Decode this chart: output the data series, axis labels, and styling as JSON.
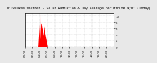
{
  "title": "Milwaukee Weather - Solar Radiation & Day Average per Minute W/m² (Today)",
  "bg_color": "#e8e8e8",
  "plot_bg_color": "#ffffff",
  "grid_color": "#bbbbbb",
  "fill_color": "#ff0000",
  "line_color": "#dd0000",
  "ylabel_color": "#000000",
  "xlabel_color": "#000000",
  "ylim": [
    0,
    1100
  ],
  "yticks": [
    0,
    200,
    400,
    600,
    800,
    1000
  ],
  "ytick_labels": [
    "0",
    "2",
    "4",
    "6",
    "8",
    "10"
  ],
  "title_fontsize": 3.5,
  "tick_fontsize": 2.8,
  "solar_data": [
    0,
    0,
    0,
    0,
    0,
    0,
    0,
    0,
    0,
    0,
    0,
    0,
    0,
    0,
    0,
    0,
    0,
    0,
    0,
    0,
    0,
    0,
    0,
    0,
    0,
    0,
    0,
    0,
    0,
    0,
    0,
    0,
    0,
    0,
    0,
    0,
    0,
    0,
    0,
    0,
    0,
    0,
    0,
    0,
    0,
    0,
    0,
    0,
    0,
    0,
    0,
    0,
    0,
    0,
    0,
    0,
    0,
    0,
    0,
    0,
    0,
    0,
    0,
    0,
    0,
    0,
    0,
    0,
    0,
    0,
    0,
    0,
    0,
    0,
    0,
    0,
    0,
    0,
    0,
    0,
    0,
    0,
    0,
    0,
    0,
    0,
    0,
    0,
    0,
    0,
    0,
    0,
    0,
    0,
    0,
    0,
    0,
    0,
    0,
    0,
    0,
    0,
    0,
    0,
    0,
    0,
    0,
    0,
    0,
    0,
    0,
    0,
    0,
    0,
    0,
    0,
    0,
    0,
    0,
    0,
    0,
    0,
    0,
    0,
    0,
    0,
    0,
    0,
    0,
    0,
    0,
    0,
    0,
    0,
    0,
    0,
    0,
    0,
    0,
    0,
    0,
    0,
    0,
    0,
    0,
    0,
    0,
    0,
    0,
    0,
    0,
    0,
    0,
    0,
    0,
    0,
    0,
    0,
    0,
    0,
    0,
    0,
    0,
    0,
    0,
    0,
    0,
    0,
    0,
    0,
    0,
    0,
    0,
    0,
    0,
    0,
    0,
    0,
    0,
    0,
    0,
    0,
    0,
    0,
    0,
    0,
    0,
    0,
    0,
    0,
    0,
    0,
    0,
    0,
    0,
    0,
    0,
    0,
    0,
    0,
    0,
    0,
    0,
    0,
    0,
    0,
    0,
    0,
    0,
    0,
    5,
    15,
    30,
    50,
    80,
    120,
    160,
    200,
    240,
    270,
    310,
    340,
    370,
    400,
    430,
    460,
    490,
    520,
    550,
    580,
    610,
    650,
    700,
    750,
    800,
    850,
    900,
    950,
    1000,
    1050,
    1080,
    1100,
    1090,
    1070,
    1050,
    800,
    600,
    400,
    300,
    280,
    300,
    400,
    500,
    550,
    600,
    650,
    700,
    720,
    730,
    740,
    750,
    760,
    770,
    760,
    750,
    730,
    710,
    690,
    670,
    650,
    640,
    630,
    620,
    610,
    600,
    590,
    580,
    570,
    560,
    550,
    540,
    530,
    520,
    510,
    500,
    490,
    480,
    460,
    440,
    420,
    400,
    380,
    370,
    380,
    400,
    420,
    440,
    460,
    480,
    500,
    520,
    540,
    560,
    580,
    600,
    610,
    620,
    630,
    640,
    650,
    660,
    640,
    600,
    560,
    520,
    500,
    490,
    480,
    470,
    460,
    450,
    440,
    430,
    420,
    410,
    400,
    390,
    380,
    370,
    360,
    350,
    340,
    330,
    320,
    310,
    300,
    290,
    280,
    270,
    260,
    250,
    240,
    230,
    220,
    210,
    200,
    190,
    180,
    170,
    160,
    150,
    140,
    130,
    120,
    110,
    100,
    90,
    80,
    70,
    60,
    50,
    40,
    30,
    20,
    15,
    10,
    5,
    3,
    2,
    1,
    0,
    0,
    0,
    0,
    0,
    0,
    0,
    0,
    0,
    0,
    0,
    0,
    0,
    0,
    0,
    0,
    0,
    0,
    0,
    0,
    0,
    0,
    0,
    0,
    0,
    0,
    0,
    0,
    0,
    0,
    0,
    0,
    0,
    0,
    0,
    0,
    0,
    0,
    0,
    0,
    0,
    0,
    0,
    0,
    0,
    0,
    0,
    0,
    0,
    0,
    0,
    0,
    0,
    0,
    0,
    0,
    0,
    0,
    0,
    0,
    0,
    0,
    0,
    0,
    0,
    0,
    0,
    0,
    0,
    0,
    0,
    0,
    0,
    0,
    0,
    0,
    0,
    0,
    0,
    0,
    0,
    0,
    0,
    0,
    0,
    0,
    0,
    0,
    0,
    0,
    0,
    0,
    0,
    0,
    0,
    0,
    0,
    0,
    0,
    0,
    0,
    0,
    0,
    0,
    0,
    0,
    0,
    0,
    0,
    0,
    0,
    0,
    0,
    0,
    0,
    0,
    0,
    0,
    0,
    0,
    0,
    0,
    0,
    0,
    0,
    0,
    0,
    0,
    0,
    0,
    0,
    0,
    0,
    0,
    0,
    0,
    0,
    0,
    0,
    0,
    0,
    0,
    0,
    0,
    0,
    0,
    0,
    0,
    0,
    0,
    0,
    0,
    0,
    0,
    0,
    0,
    0,
    0,
    0,
    0,
    0,
    0,
    0,
    0,
    0,
    0,
    0,
    0,
    0,
    0,
    0,
    0,
    0,
    0,
    0,
    0,
    0,
    0,
    0,
    0,
    0,
    0,
    0,
    0,
    0,
    0,
    0,
    0,
    0,
    0,
    0,
    0,
    0,
    0,
    0,
    0,
    0,
    0,
    0,
    0,
    0,
    0,
    0,
    0,
    0,
    0,
    0,
    0,
    0,
    0,
    0,
    0,
    0,
    0,
    0,
    0,
    0,
    0,
    0,
    0,
    0,
    0,
    0,
    0,
    0,
    0,
    0,
    0,
    0,
    0,
    0,
    0,
    0,
    0,
    0,
    0,
    0,
    0,
    0,
    0,
    0,
    0,
    0,
    0,
    0,
    0,
    0,
    0,
    0,
    0,
    0,
    0,
    0,
    0,
    0,
    0,
    0,
    0,
    0,
    0,
    0,
    0,
    0,
    0,
    0,
    0,
    0,
    0,
    0,
    0,
    0,
    0,
    0,
    0,
    0,
    0,
    0,
    0,
    0,
    0,
    0,
    0,
    0,
    0,
    0,
    0,
    0,
    0,
    0,
    0,
    0,
    0,
    0,
    0,
    0,
    0,
    0,
    0,
    0,
    0,
    0,
    0,
    0,
    0,
    0,
    0,
    0,
    0,
    0,
    0,
    0,
    0,
    0,
    0,
    0,
    0,
    0,
    0,
    0,
    0,
    0,
    0,
    0,
    0,
    0,
    0,
    0,
    0,
    0,
    0,
    0,
    0,
    0,
    0,
    0,
    0,
    0,
    0,
    0,
    0,
    0,
    0,
    0,
    0,
    0,
    0,
    0,
    0,
    0,
    0,
    0,
    0,
    0,
    0,
    0,
    0,
    0,
    0,
    0,
    0,
    0,
    0,
    0,
    0,
    0,
    0,
    0,
    0,
    0,
    0,
    0,
    0,
    0,
    0,
    0,
    0,
    0,
    0,
    0,
    0,
    0,
    0,
    0,
    0,
    0,
    0,
    0,
    0,
    0,
    0,
    0,
    0,
    0,
    0,
    0,
    0,
    0,
    0,
    0,
    0,
    0,
    0,
    0,
    0,
    0,
    0,
    0,
    0,
    0,
    0,
    0,
    0,
    0,
    0,
    0,
    0,
    0,
    0,
    0,
    0,
    0,
    0,
    0,
    0,
    0,
    0,
    0,
    0,
    0,
    0,
    0,
    0,
    0,
    0,
    0,
    0,
    0,
    0,
    0,
    0,
    0,
    0,
    0,
    0,
    0,
    0,
    0,
    0,
    0,
    0,
    0,
    0,
    0,
    0,
    0,
    0,
    0,
    0,
    0,
    0,
    0,
    0,
    0,
    0,
    0,
    0,
    0,
    0,
    0,
    0,
    0,
    0,
    0,
    0,
    0,
    0,
    0,
    0,
    0,
    0,
    0,
    0,
    0,
    0,
    0,
    0,
    0,
    0,
    0,
    0,
    0,
    0,
    0,
    0,
    0,
    0,
    0,
    0,
    0,
    0,
    0,
    0,
    0,
    0,
    0,
    0,
    0,
    0,
    0,
    0,
    0,
    0,
    0,
    0,
    0,
    0,
    0,
    0,
    0,
    0,
    0,
    0,
    0,
    0,
    0,
    0,
    0,
    0,
    0,
    0,
    0,
    0,
    0,
    0,
    0,
    0,
    0,
    0,
    0,
    0,
    0,
    0,
    0,
    0,
    0,
    0,
    0,
    0,
    0,
    0,
    0,
    0,
    0,
    0,
    0,
    0,
    0,
    0,
    0,
    0,
    0,
    0,
    0,
    0,
    0,
    0,
    0,
    0,
    0,
    0,
    0,
    0,
    0,
    0,
    0,
    0,
    0,
    0,
    0,
    0,
    0,
    0,
    0,
    0,
    0,
    0,
    0,
    0,
    0,
    0,
    0,
    0,
    0,
    0,
    0,
    0,
    0,
    0,
    0,
    0,
    0,
    0,
    0,
    0,
    0,
    0,
    0,
    0,
    0,
    0,
    0,
    0,
    0,
    0,
    0,
    0,
    0,
    0,
    0,
    0,
    0,
    0,
    0,
    0,
    0,
    0,
    0,
    0,
    0,
    0,
    0,
    0,
    0,
    0,
    0,
    0,
    0,
    0,
    0,
    0,
    0,
    0,
    0,
    0,
    0,
    0,
    0,
    0,
    0,
    0,
    0,
    0,
    0,
    0,
    0,
    0,
    0,
    0,
    0,
    0,
    0,
    0,
    0,
    0,
    0,
    0,
    0,
    0,
    0,
    0,
    0,
    0,
    0,
    0,
    0,
    0,
    0,
    0,
    0,
    0,
    0,
    0,
    0,
    0,
    0,
    0,
    0,
    0,
    0,
    0,
    0,
    0,
    0,
    0,
    0,
    0,
    0,
    0,
    0,
    0,
    0,
    0,
    0,
    0,
    0,
    0,
    0,
    0,
    0,
    0,
    0,
    0,
    0,
    0,
    0,
    0,
    0,
    0,
    0,
    0,
    0,
    0,
    0,
    0,
    0,
    0,
    0,
    0,
    0,
    0,
    0,
    0,
    0,
    0,
    0,
    0,
    0,
    0,
    0,
    0,
    0,
    0,
    0,
    0,
    0,
    0,
    0,
    0,
    0,
    0,
    0,
    0,
    0,
    0,
    0,
    0,
    0,
    0,
    0,
    0,
    0,
    0,
    0,
    0,
    0,
    0,
    0,
    0,
    0,
    0,
    0,
    0,
    0,
    0,
    0,
    0,
    0,
    0,
    0,
    0,
    0,
    0,
    0,
    0,
    0,
    0,
    0,
    0,
    0,
    0,
    0,
    0,
    0,
    0,
    0,
    0,
    0,
    0,
    0,
    0,
    0,
    0,
    0,
    0,
    0,
    0,
    0,
    0,
    0,
    0,
    0,
    0,
    0,
    0,
    0,
    0,
    0,
    0,
    0,
    0,
    0,
    0,
    0,
    0,
    0,
    0,
    0,
    0,
    0,
    0,
    0,
    0,
    0,
    0,
    0,
    0,
    0,
    0,
    0,
    0,
    0,
    0,
    0,
    0,
    0,
    0,
    0,
    0,
    0,
    0,
    0,
    0,
    0,
    0,
    0,
    0,
    0,
    0,
    0,
    0,
    0,
    0,
    0,
    0,
    0,
    0,
    0,
    0,
    0,
    0,
    0,
    0,
    0,
    0,
    0,
    0,
    0,
    0,
    0,
    0,
    0,
    0,
    0,
    0,
    0,
    0,
    0,
    0,
    0,
    0,
    0,
    0,
    0,
    0,
    0,
    0,
    0,
    0,
    0,
    0,
    0,
    0,
    0,
    0,
    0,
    0,
    0,
    0,
    0,
    0,
    0,
    0,
    0,
    0,
    0,
    0,
    0,
    0,
    0,
    0,
    0,
    0,
    0,
    0,
    0,
    0,
    0,
    0,
    0,
    0,
    0,
    0,
    0,
    0,
    0,
    0,
    0,
    0,
    0,
    0,
    0,
    0,
    0,
    0,
    0,
    0,
    0,
    0,
    0,
    0,
    0,
    0,
    0,
    0,
    0,
    0,
    0,
    0,
    0,
    0,
    0,
    0,
    0,
    0,
    0,
    0,
    0,
    0,
    0,
    0,
    0,
    0,
    0,
    0,
    0,
    0,
    0,
    0,
    0,
    0,
    0,
    0,
    0,
    0,
    0,
    0,
    0,
    0,
    0,
    0,
    0,
    0,
    0,
    0,
    0,
    0,
    0,
    0,
    0,
    0,
    0,
    0,
    0,
    0,
    0,
    0,
    0,
    0,
    0,
    0,
    0,
    0,
    0,
    0,
    0,
    0,
    0,
    0,
    0,
    0,
    0,
    0,
    0,
    0,
    0,
    0,
    0,
    0,
    0,
    0,
    0,
    0,
    0,
    0,
    0,
    0,
    0,
    0,
    0,
    0,
    0,
    0,
    0,
    0,
    0,
    0,
    0,
    0,
    0,
    0,
    0,
    0,
    0,
    0,
    0,
    0,
    0,
    0,
    0,
    0,
    0,
    0,
    0,
    0,
    0,
    0,
    0,
    0,
    0,
    0,
    0,
    0,
    0,
    0,
    0,
    0,
    0,
    0,
    0,
    0,
    0,
    0,
    0,
    0,
    0,
    0,
    0,
    0,
    0,
    0,
    0,
    0,
    0,
    0,
    0,
    0,
    0,
    0,
    0,
    0
  ]
}
